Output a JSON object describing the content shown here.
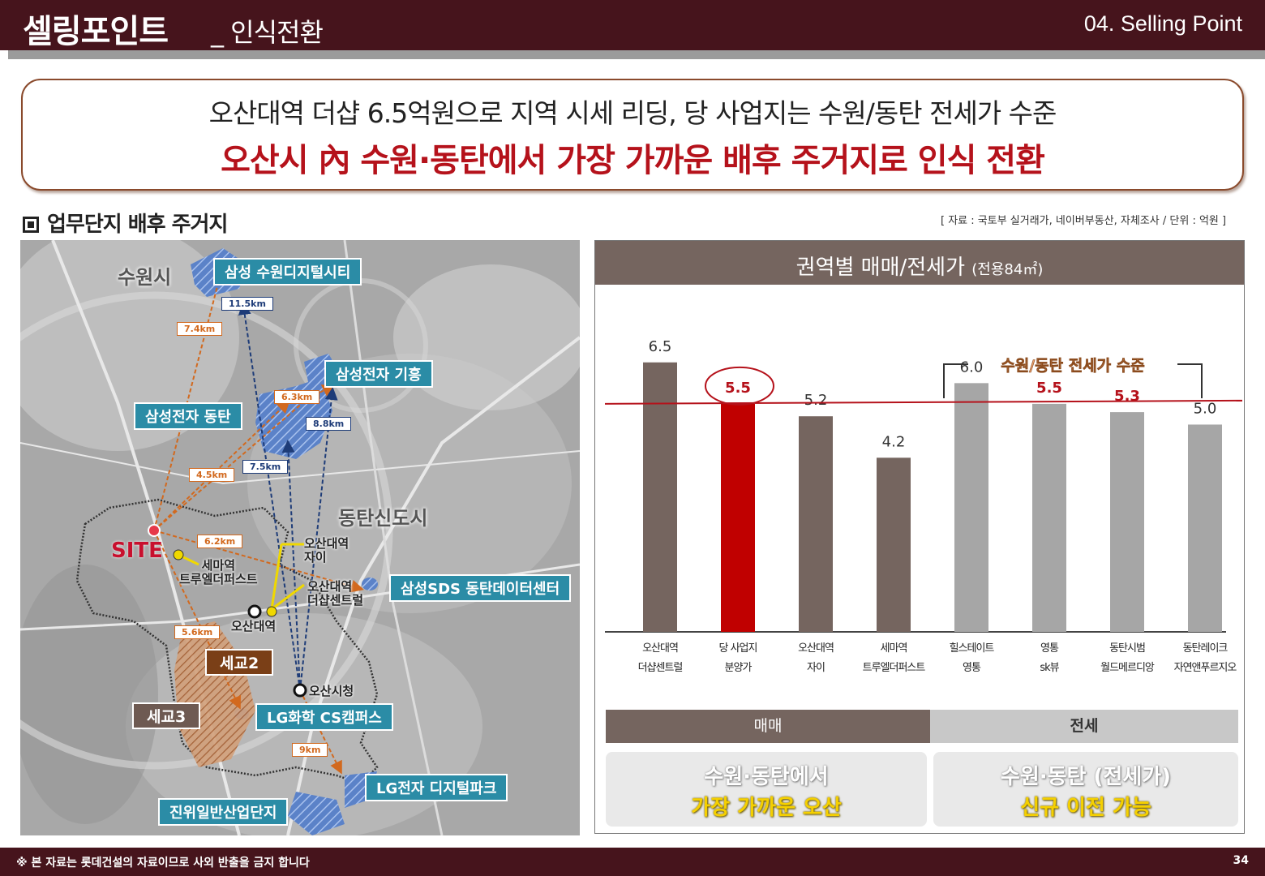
{
  "header": {
    "title": "셀링포인트",
    "subtitle": "_ 인식전환",
    "section_code": "04. Selling Point"
  },
  "headline": {
    "line1": "오산대역 더샵 6.5억원으로 지역 시세 리딩, 당 사업지는 수원/동탄 전세가 수준",
    "line2": "오산시 內 수원·동탄에서 가장 가까운 배후 주거지로 인식 전환"
  },
  "section_label": "업무단지 배후 주거지",
  "source_note": "[ 자료 : 국토부 실거래가, 네이버부동산, 자체조사 / 단위 : 억원 ]",
  "map": {
    "cities": [
      "수원시",
      "동탄신도시"
    ],
    "site_label": "SITE",
    "labels": {
      "samsung_suwon": "삼성 수원디지털시티",
      "samsung_giheung": "삼성전자 기흥",
      "samsung_dongtan": "삼성전자 동탄",
      "samsung_sds": "삼성SDS 동탄데이터센터",
      "lg_chem": "LG화학 CS캠퍼스",
      "lg_digital": "LG전자 디지털파크",
      "jinwi": "진위일반산업단지"
    },
    "districts": [
      "세교2",
      "세교3"
    ],
    "distances": {
      "d1": "7.4km",
      "d2": "11.5km",
      "d3": "6.3km",
      "d4": "8.8km",
      "d5": "4.5km",
      "d6": "7.5km",
      "d7": "6.2km",
      "d8": "5.6km",
      "d9": "9km"
    },
    "places": {
      "semaa": "세마역\n트루엘더퍼스트",
      "osan_xi": "오산대역\n자이",
      "osan_sharp": "오산대역\n더샵센트럴",
      "osan_station": "오산대역",
      "city_hall": "오산시청"
    }
  },
  "chart_data": {
    "type": "bar",
    "title": "권역별 매매/전세가",
    "title_unit": "(전용84㎡)",
    "categories": [
      [
        "오산대역",
        "더샵센트럴"
      ],
      [
        "당 사업지",
        "분양가"
      ],
      [
        "오산대역",
        "자이"
      ],
      [
        "세마역",
        "트루엘더퍼스트"
      ],
      [
        "힐스테이트",
        "영통"
      ],
      [
        "영통",
        "sk뷰"
      ],
      [
        "동탄시범",
        "월드메르디앙"
      ],
      [
        "동탄레이크",
        "자연앤푸르지오"
      ]
    ],
    "values": [
      6.5,
      5.5,
      5.2,
      4.2,
      6.0,
      5.5,
      5.3,
      5.0
    ],
    "value_labels": [
      "6.5",
      "5.5",
      "5.2",
      "4.2",
      "6.0",
      "5.5",
      "5.3",
      "5.0"
    ],
    "bar_types": [
      "sale",
      "highlight",
      "sale",
      "sale",
      "jeonse",
      "jeonse",
      "jeonse",
      "jeonse"
    ],
    "colors": {
      "sale": "#75655f",
      "highlight": "#c00000",
      "jeonse": "#a6a6a6",
      "redline": "#b5121b",
      "label_red": "#b5121b",
      "label_dark": "#333333"
    },
    "label_colors": [
      "dark",
      "red",
      "dark",
      "dark",
      "dark",
      "red",
      "red",
      "dark"
    ],
    "reference_line": 5.5,
    "bracket_label": "수원/동탄 전세가 수준",
    "ylim": [
      0,
      7.2
    ],
    "legend": {
      "sale": "매매",
      "jeonse": "전세"
    }
  },
  "summary": {
    "left_line1": "수원·동탄에서",
    "left_line2": "가장 가까운 오산",
    "right_line1": "수원·동탄 (전세가)",
    "right_line2": "신규 이전 가능"
  },
  "footer": {
    "note": "※ 본 자료는 롯데건설의 자료이므로 사외 반출을 금지 합니다",
    "page": "34"
  }
}
